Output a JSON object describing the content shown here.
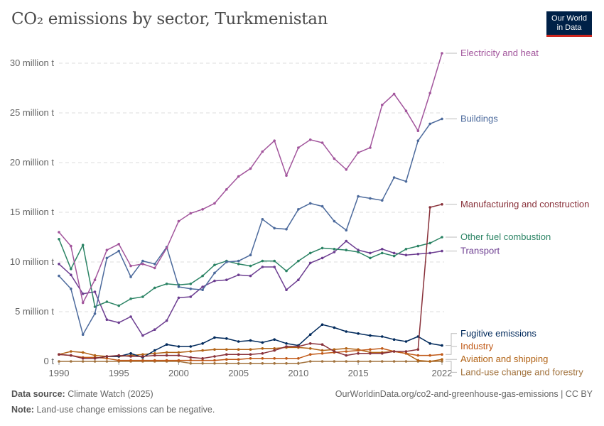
{
  "title": "CO₂ emissions by sector, Turkmenistan",
  "logo": {
    "line1": "Our World",
    "line2": "in Data"
  },
  "footer": {
    "source_label": "Data source:",
    "source": "Climate Watch (2025)",
    "url": "OurWorldinData.org/co2-and-greenhouse-gas-emissions | CC BY",
    "note_label": "Note:",
    "note": "Land-use change emissions can be negative."
  },
  "chart_data": {
    "type": "line",
    "title": "CO₂ emissions by sector, Turkmenistan",
    "xlim": [
      1990,
      2022
    ],
    "ylim": [
      0,
      30
    ],
    "x_ticks": [
      "1990",
      "1995",
      "2000",
      "2005",
      "2010",
      "2015",
      "2022"
    ],
    "y_ticks": [
      {
        "v": 0,
        "label": "0 t"
      },
      {
        "v": 5,
        "label": "5 million t"
      },
      {
        "v": 10,
        "label": "10 million t"
      },
      {
        "v": 15,
        "label": "15 million t"
      },
      {
        "v": 20,
        "label": "20 million t"
      },
      {
        "v": 25,
        "label": "25 million t"
      },
      {
        "v": 30,
        "label": "30 million t"
      }
    ],
    "grid": true,
    "legend": "right (line-end labels)",
    "x_start": 1990,
    "series": [
      {
        "name": "Electricity and heat",
        "color": "#a2559c",
        "values": [
          13.0,
          11.6,
          5.9,
          8.2,
          11.2,
          11.8,
          9.6,
          9.8,
          9.4,
          11.4,
          14.1,
          14.9,
          15.3,
          15.9,
          17.3,
          18.6,
          19.4,
          21.1,
          22.2,
          18.7,
          21.5,
          22.3,
          22.0,
          20.4,
          19.3,
          21.0,
          21.5,
          25.8,
          26.9,
          25.2,
          23.2,
          27.0,
          31.0
        ]
      },
      {
        "name": "Buildings",
        "color": "#4c6a9c",
        "values": [
          8.6,
          7.3,
          2.7,
          4.8,
          10.4,
          11.1,
          8.5,
          10.1,
          9.8,
          11.5,
          7.5,
          7.3,
          7.2,
          8.9,
          10.0,
          10.1,
          10.7,
          14.3,
          13.4,
          13.3,
          15.3,
          15.9,
          15.6,
          14.1,
          13.2,
          16.6,
          16.4,
          16.2,
          18.5,
          18.1,
          22.2,
          23.9,
          24.4
        ]
      },
      {
        "name": "Manufacturing and construction",
        "color": "#883039",
        "values": [
          0.7,
          0.6,
          0.3,
          0.3,
          0.5,
          0.6,
          0.5,
          0.5,
          0.6,
          0.6,
          0.6,
          0.4,
          0.3,
          0.5,
          0.7,
          0.7,
          0.7,
          0.8,
          1.1,
          1.5,
          1.5,
          1.8,
          1.7,
          1.0,
          0.6,
          0.8,
          0.8,
          0.8,
          1.0,
          1.0,
          1.2,
          15.5,
          15.8
        ]
      },
      {
        "name": "Other fuel combustion",
        "color": "#2c8465",
        "values": [
          12.3,
          9.3,
          11.7,
          5.5,
          6.0,
          5.6,
          6.3,
          6.5,
          7.4,
          7.8,
          7.7,
          7.8,
          8.6,
          9.7,
          10.1,
          9.8,
          9.6,
          10.1,
          10.1,
          9.1,
          10.1,
          10.9,
          11.4,
          11.3,
          11.2,
          11.0,
          10.4,
          10.9,
          10.6,
          11.3,
          11.6,
          11.9,
          12.5
        ]
      },
      {
        "name": "Transport",
        "color": "#6d3e91",
        "values": [
          9.8,
          8.7,
          6.8,
          7.0,
          4.2,
          3.9,
          4.5,
          2.6,
          3.2,
          4.1,
          6.4,
          6.5,
          7.5,
          8.1,
          8.2,
          8.7,
          8.6,
          9.5,
          9.5,
          7.2,
          8.2,
          9.9,
          10.4,
          11.0,
          12.1,
          11.2,
          10.9,
          11.3,
          10.9,
          10.7,
          10.8,
          10.9,
          11.1
        ]
      },
      {
        "name": "Fugitive emissions",
        "color": "#00295b",
        "values": [
          null,
          null,
          null,
          0.3,
          0.5,
          0.5,
          0.8,
          0.4,
          1.1,
          1.7,
          1.5,
          1.5,
          1.8,
          2.4,
          2.3,
          2.0,
          2.1,
          1.9,
          2.2,
          1.8,
          1.6,
          2.7,
          3.7,
          3.4,
          3.0,
          2.8,
          2.6,
          2.5,
          2.2,
          2.0,
          2.5,
          1.8,
          1.6
        ]
      },
      {
        "name": "Industry",
        "color": "#c05917",
        "values": [
          0.7,
          0.6,
          0.4,
          0.4,
          0.3,
          0.1,
          0.1,
          0.1,
          0.1,
          0.1,
          0.1,
          0.1,
          0.1,
          0.1,
          0.2,
          0.2,
          0.3,
          0.3,
          0.3,
          0.3,
          0.3,
          0.7,
          0.8,
          0.9,
          1.0,
          1.1,
          1.2,
          1.3,
          1.0,
          0.8,
          0.6,
          0.6,
          0.7
        ]
      },
      {
        "name": "Aviation and shipping",
        "color": "#b16214",
        "values": [
          0.7,
          1.0,
          0.9,
          0.6,
          0.5,
          0.5,
          0.6,
          0.7,
          0.8,
          0.9,
          0.9,
          1.0,
          1.1,
          1.2,
          1.2,
          1.2,
          1.2,
          1.3,
          1.3,
          1.4,
          1.4,
          1.3,
          1.1,
          1.2,
          1.3,
          1.2,
          0.9,
          0.9,
          1.0,
          0.8,
          0.1,
          0.0,
          0.2
        ]
      },
      {
        "name": "Land-use change and forestry",
        "color": "#a2733e",
        "values": [
          0,
          0,
          0,
          0,
          0,
          0,
          0,
          0,
          0,
          0,
          0,
          -0.2,
          -0.2,
          -0.2,
          -0.2,
          -0.2,
          -0.2,
          -0.2,
          -0.2,
          -0.2,
          -0.2,
          0,
          0,
          0,
          0,
          0,
          0,
          0,
          0,
          0,
          0,
          0,
          0
        ]
      }
    ],
    "label_y": {
      "Electricity and heat": 31.0,
      "Buildings": 24.4,
      "Manufacturing and construction": 15.8,
      "Other fuel combustion": 12.5,
      "Transport": 11.1,
      "Fugitive emissions": 2.8,
      "Industry": 1.5,
      "Aviation and shipping": 0.2,
      "Land-use change and forestry": -1.1
    }
  }
}
